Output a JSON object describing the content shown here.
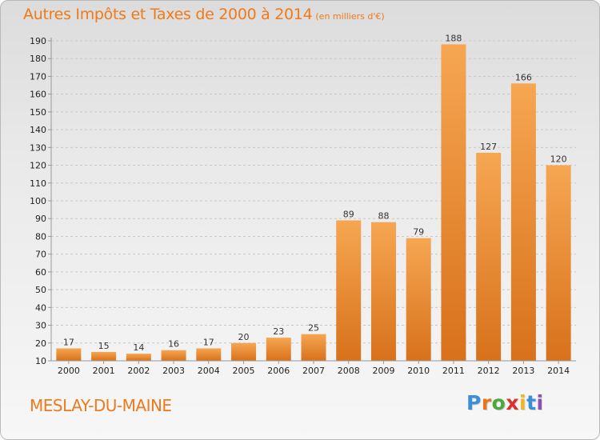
{
  "header": {
    "title": "Autres Impôts et Taxes de 2000 à 2014",
    "unit": "(en milliers d'€)"
  },
  "footer": {
    "commune": "MESLAY-DU-MAINE",
    "logo_text": "Proxiti",
    "logo_colors": [
      "#3a8fd6",
      "#e8731a",
      "#4aa83c",
      "#d9342b",
      "#f0b61c",
      "#3a8fd6",
      "#8b4fb5"
    ]
  },
  "colors": {
    "accent": "#ee7a1c",
    "bar_top": "#f6a652",
    "bar_bottom": "#d8711b",
    "gridline": "#c8c8c8",
    "axis": "#999999"
  },
  "chart_data": {
    "type": "bar",
    "title": "Autres Impôts et Taxes de 2000 à 2014",
    "subtitle": "(en milliers d'€)",
    "xlabel": "",
    "ylabel": "",
    "categories": [
      "2000",
      "2001",
      "2002",
      "2003",
      "2004",
      "2005",
      "2006",
      "2007",
      "2008",
      "2009",
      "2010",
      "2011",
      "2012",
      "2013",
      "2014"
    ],
    "values": [
      17,
      15,
      14,
      16,
      17,
      20,
      23,
      25,
      89,
      88,
      79,
      188,
      127,
      166,
      120
    ],
    "ylim": [
      10,
      190
    ],
    "yticks": [
      10,
      20,
      30,
      40,
      50,
      60,
      70,
      80,
      90,
      100,
      110,
      120,
      130,
      140,
      150,
      160,
      170,
      180,
      190
    ],
    "grid": true,
    "legend": "none"
  }
}
